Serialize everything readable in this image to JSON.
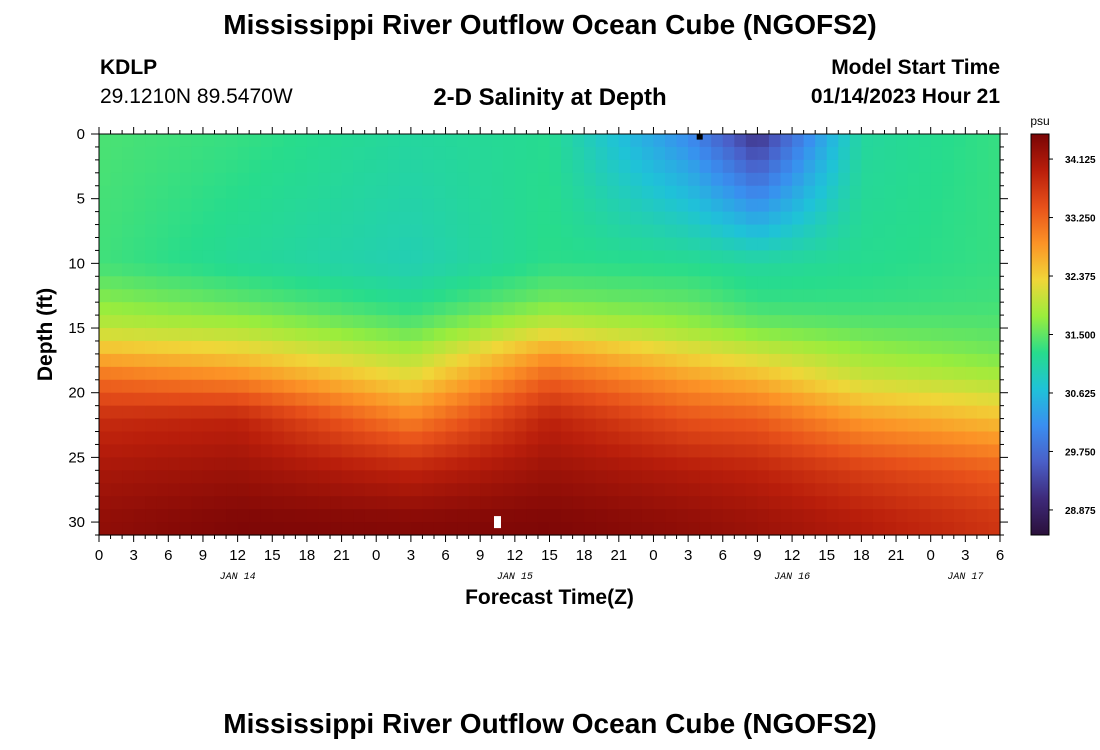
{
  "header": {
    "title": "Mississippi River Outflow Ocean Cube (NGOFS2)",
    "station_id": "KDLP",
    "coords": "29.1210N  89.5470W",
    "subtitle": "2-D Salinity at Depth",
    "model_start_label": "Model Start Time",
    "model_start_value": "01/14/2023 Hour 21"
  },
  "footer": {
    "title": "Mississippi River Outflow Ocean Cube (NGOFS2)"
  },
  "chart_data": {
    "type": "heatmap",
    "title": "2-D Salinity at Depth",
    "xlabel": "Forecast Time(Z)",
    "ylabel": "Depth (ft)",
    "x_unit": "hours",
    "x_range_hours": [
      0,
      78
    ],
    "x_tick_hours": [
      0,
      3,
      6,
      9,
      12,
      15,
      18,
      21,
      24,
      27,
      30,
      33,
      36,
      39,
      42,
      45,
      48,
      51,
      54,
      57,
      60,
      63,
      66,
      69,
      72,
      75,
      78
    ],
    "x_tick_labels": [
      "0",
      "3",
      "6",
      "9",
      "12",
      "15",
      "18",
      "21",
      "0",
      "3",
      "6",
      "9",
      "12",
      "15",
      "18",
      "21",
      "0",
      "3",
      "6",
      "9",
      "12",
      "15",
      "18",
      "21",
      "0",
      "3",
      "6"
    ],
    "date_labels": [
      {
        "hour": 12,
        "text": "JAN 14"
      },
      {
        "hour": 36,
        "text": "JAN 15"
      },
      {
        "hour": 60,
        "text": "JAN 16"
      },
      {
        "hour": 75,
        "text": "JAN 17"
      }
    ],
    "y_range": [
      0,
      31
    ],
    "y_inverted": true,
    "y_ticks": [
      0,
      5,
      10,
      15,
      20,
      25,
      30
    ],
    "y_tick_labels": [
      "0",
      "5",
      "10",
      "15",
      "20",
      "25",
      "30"
    ],
    "colorbar": {
      "unit": "psu",
      "range": [
        28.5,
        34.5
      ],
      "ticks": [
        34.125,
        33.25,
        32.375,
        31.5,
        30.625,
        29.75,
        28.875
      ],
      "tick_labels": [
        "34.125",
        "33.250",
        "32.375",
        "31.500",
        "30.625",
        "29.750",
        "28.875"
      ],
      "colors": [
        "#2a0f3a",
        "#3e2a7a",
        "#4a5fc8",
        "#3a8ef0",
        "#1fc2d8",
        "#27dc8c",
        "#9aed3c",
        "#f0d638",
        "#fc9326",
        "#e8511a",
        "#b91e0b",
        "#790505"
      ]
    },
    "salinity_profile_by_hour": [
      {
        "hour": 0,
        "depths_ft": [
          0,
          10,
          13,
          15,
          17,
          19,
          22,
          26,
          30
        ],
        "psu": [
          31.4,
          31.35,
          31.7,
          32.0,
          32.6,
          33.2,
          33.8,
          34.1,
          34.3
        ]
      },
      {
        "hour": 12,
        "depths_ft": [
          0,
          10,
          13,
          15,
          17,
          19,
          22,
          26,
          30
        ],
        "psu": [
          31.3,
          31.15,
          31.5,
          31.9,
          32.4,
          33.0,
          33.9,
          34.2,
          34.45
        ]
      },
      {
        "hour": 27,
        "depths_ft": [
          0,
          10,
          13,
          15,
          17,
          19,
          22,
          26,
          30
        ],
        "psu": [
          31.1,
          30.95,
          31.2,
          31.5,
          31.9,
          32.3,
          33.0,
          33.9,
          34.4
        ]
      },
      {
        "hour": 39,
        "depths_ft": [
          0,
          10,
          13,
          15,
          17,
          19,
          22,
          26,
          30
        ],
        "psu": [
          31.2,
          31.25,
          31.6,
          32.1,
          32.8,
          33.3,
          33.9,
          34.2,
          34.45
        ]
      },
      {
        "hour": 51,
        "depths_ft": [
          0,
          10,
          13,
          15,
          17,
          19,
          22,
          26,
          30
        ],
        "psu": [
          30.1,
          31.2,
          31.5,
          31.8,
          32.3,
          32.8,
          33.4,
          34.0,
          34.3
        ]
      },
      {
        "hour": 57,
        "depths_ft": [
          0,
          10,
          13,
          15,
          17,
          19,
          22,
          26,
          30
        ],
        "psu": [
          29.1,
          31.1,
          31.3,
          31.6,
          32.1,
          32.6,
          33.3,
          33.9,
          34.2
        ]
      },
      {
        "hour": 66,
        "depths_ft": [
          0,
          10,
          13,
          15,
          17,
          19,
          22,
          26,
          30
        ],
        "psu": [
          31.1,
          31.2,
          31.3,
          31.5,
          31.8,
          32.1,
          32.8,
          33.6,
          34.0
        ]
      },
      {
        "hour": 78,
        "depths_ft": [
          0,
          10,
          13,
          15,
          17,
          19,
          22,
          26,
          30
        ],
        "psu": [
          31.3,
          31.3,
          31.35,
          31.45,
          31.6,
          31.9,
          32.5,
          33.3,
          33.7
        ]
      }
    ],
    "markers": [
      {
        "label": "surface-marker",
        "hour": 52,
        "depth_ft": 0.2,
        "color": "#000000"
      },
      {
        "label": "bottom-marker",
        "hour": 34.5,
        "depth_ft": 30,
        "color": "#ffffff"
      }
    ]
  }
}
